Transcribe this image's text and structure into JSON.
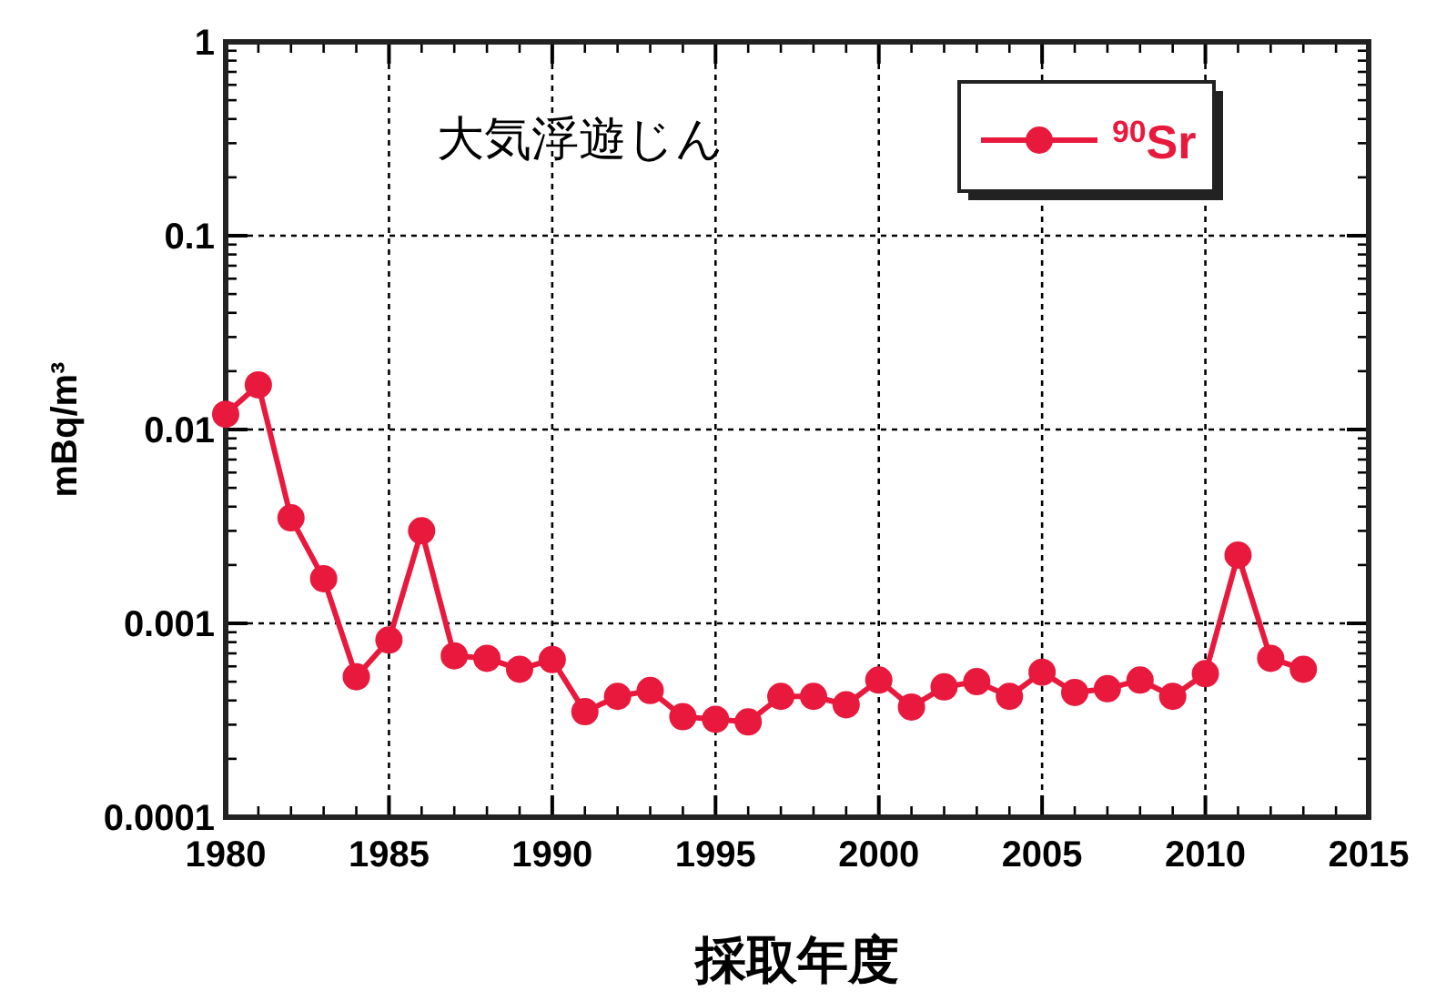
{
  "chart_data": {
    "type": "line",
    "title": "大気浮遊じん",
    "xlabel": "採取年度",
    "ylabel": "mBq/m³",
    "x": [
      1980,
      1981,
      1982,
      1983,
      1984,
      1985,
      1986,
      1987,
      1988,
      1989,
      1990,
      1991,
      1992,
      1993,
      1994,
      1995,
      1996,
      1997,
      1998,
      1999,
      2000,
      2001,
      2002,
      2003,
      2004,
      2005,
      2006,
      2007,
      2008,
      2009,
      2010,
      2011,
      2012,
      2013
    ],
    "series": [
      {
        "name": "$^{90}$Sr",
        "color": "#e8193c",
        "values": [
          0.012,
          0.017,
          0.0035,
          0.0017,
          0.00053,
          0.00082,
          0.003,
          0.00068,
          0.00066,
          0.00058,
          0.00065,
          0.00035,
          0.00042,
          0.00045,
          0.00033,
          0.00032,
          0.00031,
          0.00042,
          0.00042,
          0.00038,
          0.00051,
          0.00037,
          0.00047,
          0.0005,
          0.00042,
          0.00056,
          0.00044,
          0.00046,
          0.00051,
          0.00042,
          0.00055,
          0.00225,
          0.00066,
          0.00058
        ]
      }
    ],
    "xlim": [
      1980,
      2015
    ],
    "xticks": [
      1980,
      1985,
      1990,
      1995,
      2000,
      2005,
      2010,
      2015
    ],
    "ylim": [
      0.0001,
      1
    ],
    "yticks": [
      0.0001,
      0.001,
      0.01,
      0.1,
      1
    ],
    "log": true,
    "grid": true,
    "legend": "top right",
    "marker": "circle",
    "line_style": "solid"
  }
}
